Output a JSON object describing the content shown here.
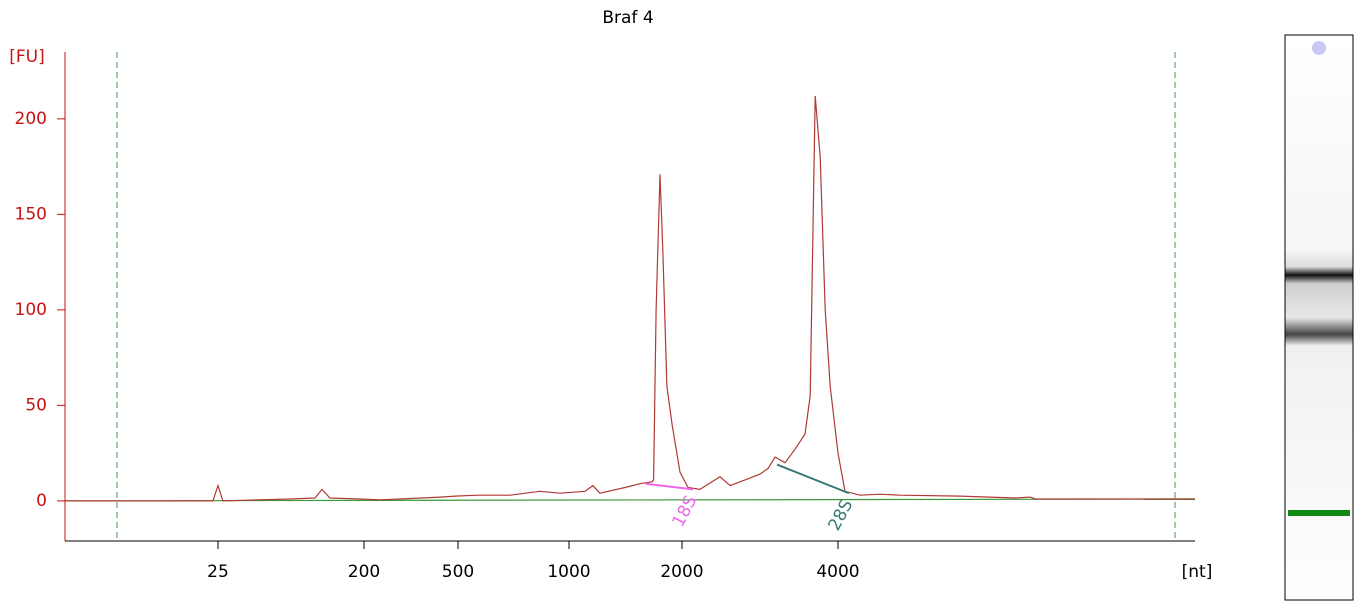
{
  "chart_data": {
    "type": "line",
    "title": "Braf 4",
    "ylabel": "[FU]",
    "xlabel": "[nt]",
    "xscale": "migration",
    "xlim": [
      3,
      19500
    ],
    "xticks": [
      25,
      200,
      500,
      1000,
      2000,
      4000
    ],
    "ylim": [
      -21,
      235
    ],
    "yticks": [
      0,
      50,
      100,
      150,
      200
    ],
    "series": [
      {
        "color": "#b03a34",
        "x": [
          3,
          23.3,
          25,
          26.8,
          69.7,
          99.5,
          110,
          123,
          188,
          234,
          420,
          486,
          567,
          692,
          834,
          945,
          1103,
          1158,
          1209,
          1410,
          1545,
          1665,
          1680,
          1706,
          1747,
          1779,
          1823,
          1882,
          1976,
          2054,
          2166,
          2368,
          2477,
          2646,
          2828,
          2932,
          3025,
          3161,
          3304,
          3454,
          3535,
          3614,
          3696,
          3779,
          3864,
          4000,
          4126,
          4410,
          4818,
          5266,
          6878,
          8780,
          9375,
          9620,
          19500
        ],
        "values": [
          0,
          0,
          8,
          0,
          1,
          1.5,
          6,
          1.5,
          1,
          0.5,
          2,
          2.5,
          3,
          3,
          5,
          4,
          5,
          8,
          4,
          7,
          9,
          10,
          11,
          100,
          171,
          130,
          60,
          40,
          15,
          7,
          6,
          12.6,
          8,
          11,
          14,
          17,
          23,
          20,
          27,
          35,
          55,
          212,
          180,
          100,
          60,
          25,
          5,
          3,
          3.5,
          3,
          2.5,
          1.5,
          2,
          1,
          1
        ]
      },
      {
        "color": "#3c9a3c",
        "x": [
          3,
          19500
        ],
        "values": [
          0,
          1
        ]
      }
    ],
    "annotations": [
      {
        "label": "18S",
        "color": "#ee66ee",
        "x": [
          1600,
          2100
        ],
        "values": [
          9,
          6
        ]
      },
      {
        "label": "28S",
        "color": "#3a7a78",
        "x": [
          3050,
          4200
        ],
        "values": [
          19,
          4
        ]
      }
    ]
  }
}
